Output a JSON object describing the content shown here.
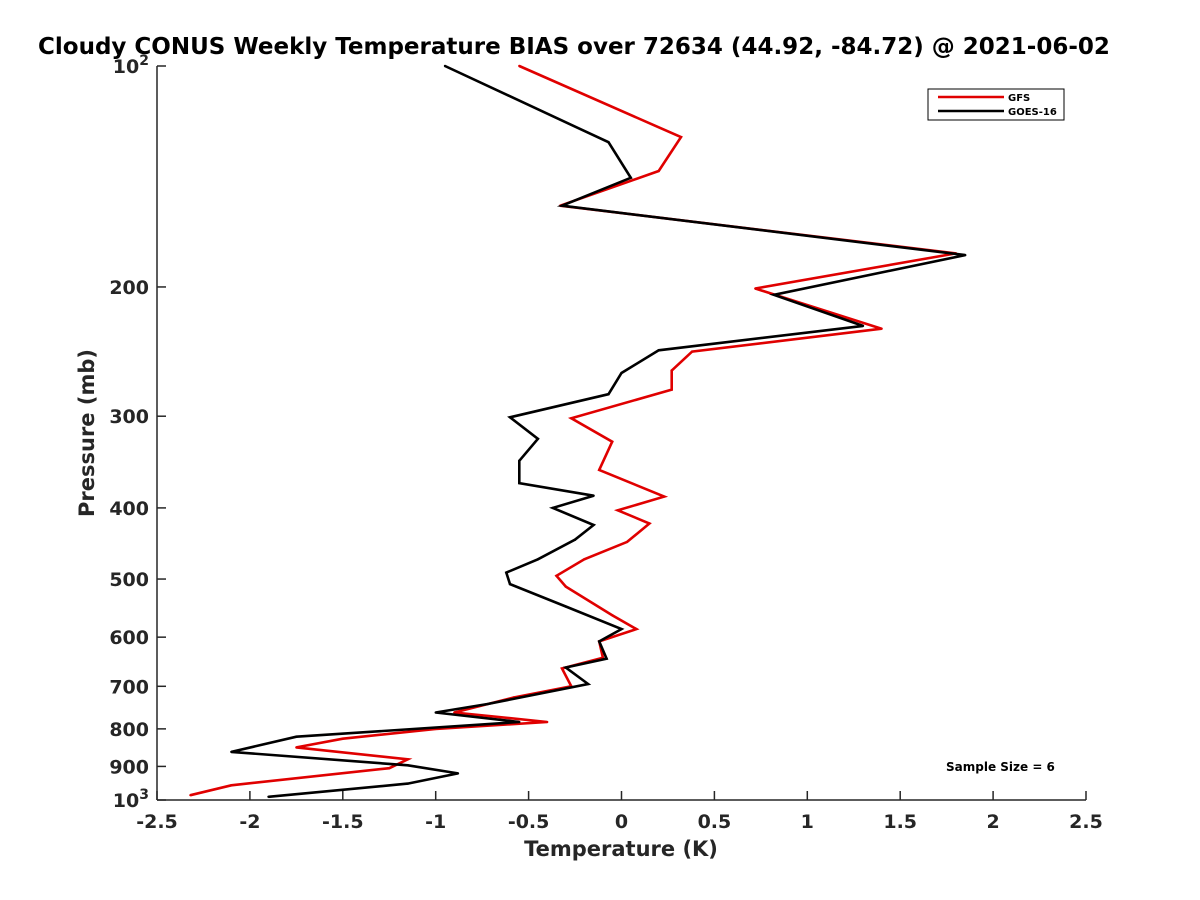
{
  "chart_data": {
    "type": "line",
    "title": "Cloudy CONUS Weekly Temperature BIAS over 72634 (44.92, -84.72) @ 2021-06-02",
    "xlabel": "Temperature (K)",
    "ylabel": "Pressure (mb)",
    "xlim": [
      -2.5,
      2.5
    ],
    "ylim": [
      100,
      1000
    ],
    "y_scale": "log",
    "y_reversed": true,
    "x_ticks": [
      -2.5,
      -2,
      -1.5,
      -1,
      -0.5,
      0,
      0.5,
      1,
      1.5,
      2,
      2.5
    ],
    "x_tick_labels": [
      "-2.5",
      "-2",
      "-1.5",
      "-1",
      "-0.5",
      "0",
      "0.5",
      "1",
      "1.5",
      "2",
      "2.5"
    ],
    "y_ticks": [
      {
        "value": 100,
        "base": "10",
        "exp": "2"
      },
      {
        "value": 200,
        "label": "200"
      },
      {
        "value": 300,
        "label": "300"
      },
      {
        "value": 400,
        "label": "400"
      },
      {
        "value": 500,
        "label": "500"
      },
      {
        "value": 600,
        "label": "600"
      },
      {
        "value": 700,
        "label": "700"
      },
      {
        "value": 800,
        "label": "800"
      },
      {
        "value": 900,
        "label": "900"
      },
      {
        "value": 1000,
        "base": "10",
        "exp": "3"
      }
    ],
    "grid": false,
    "legend_position": "top-right",
    "series": [
      {
        "name": "GFS",
        "color": "#e00000",
        "points": [
          [
            -0.55,
            100
          ],
          [
            0.32,
            125
          ],
          [
            0.2,
            139
          ],
          [
            -0.33,
            155
          ],
          [
            1.8,
            180
          ],
          [
            0.72,
            201
          ],
          [
            1.4,
            228
          ],
          [
            0.38,
            245
          ],
          [
            0.27,
            260
          ],
          [
            0.27,
            276
          ],
          [
            -0.27,
            302
          ],
          [
            -0.05,
            325
          ],
          [
            -0.12,
            355
          ],
          [
            0.23,
            386
          ],
          [
            -0.02,
            403
          ],
          [
            0.15,
            420
          ],
          [
            0.03,
            445
          ],
          [
            -0.2,
            470
          ],
          [
            -0.35,
            495
          ],
          [
            -0.3,
            512
          ],
          [
            -0.05,
            560
          ],
          [
            0.08,
            585
          ],
          [
            -0.12,
            608
          ],
          [
            -0.1,
            640
          ],
          [
            -0.32,
            662
          ],
          [
            -0.27,
            700
          ],
          [
            -0.58,
            725
          ],
          [
            -0.9,
            760
          ],
          [
            -0.4,
            783
          ],
          [
            -1.0,
            800
          ],
          [
            -1.5,
            825
          ],
          [
            -1.75,
            848
          ],
          [
            -1.15,
            880
          ],
          [
            -1.25,
            905
          ],
          [
            -2.1,
            955
          ],
          [
            -2.32,
            985
          ]
        ]
      },
      {
        "name": "GOES-16",
        "color": "#000000",
        "points": [
          [
            -0.95,
            100
          ],
          [
            -0.07,
            127
          ],
          [
            0.05,
            142
          ],
          [
            -0.32,
            155
          ],
          [
            1.85,
            181
          ],
          [
            0.82,
            205
          ],
          [
            1.3,
            226
          ],
          [
            0.2,
            244
          ],
          [
            0.0,
            262
          ],
          [
            -0.07,
            280
          ],
          [
            -0.6,
            301
          ],
          [
            -0.45,
            322
          ],
          [
            -0.55,
            345
          ],
          [
            -0.55,
            370
          ],
          [
            -0.15,
            385
          ],
          [
            -0.37,
            400
          ],
          [
            -0.15,
            422
          ],
          [
            -0.25,
            442
          ],
          [
            -0.45,
            470
          ],
          [
            -0.62,
            490
          ],
          [
            -0.6,
            508
          ],
          [
            -0.3,
            545
          ],
          [
            0.0,
            585
          ],
          [
            -0.12,
            608
          ],
          [
            -0.08,
            642
          ],
          [
            -0.3,
            660
          ],
          [
            -0.18,
            695
          ],
          [
            -0.72,
            740
          ],
          [
            -1.0,
            760
          ],
          [
            -0.55,
            783
          ],
          [
            -1.75,
            820
          ],
          [
            -2.1,
            860
          ],
          [
            -1.15,
            897
          ],
          [
            -0.88,
            920
          ],
          [
            -1.15,
            950
          ],
          [
            -1.9,
            990
          ]
        ]
      }
    ],
    "annotation": "Sample Size = 6"
  }
}
